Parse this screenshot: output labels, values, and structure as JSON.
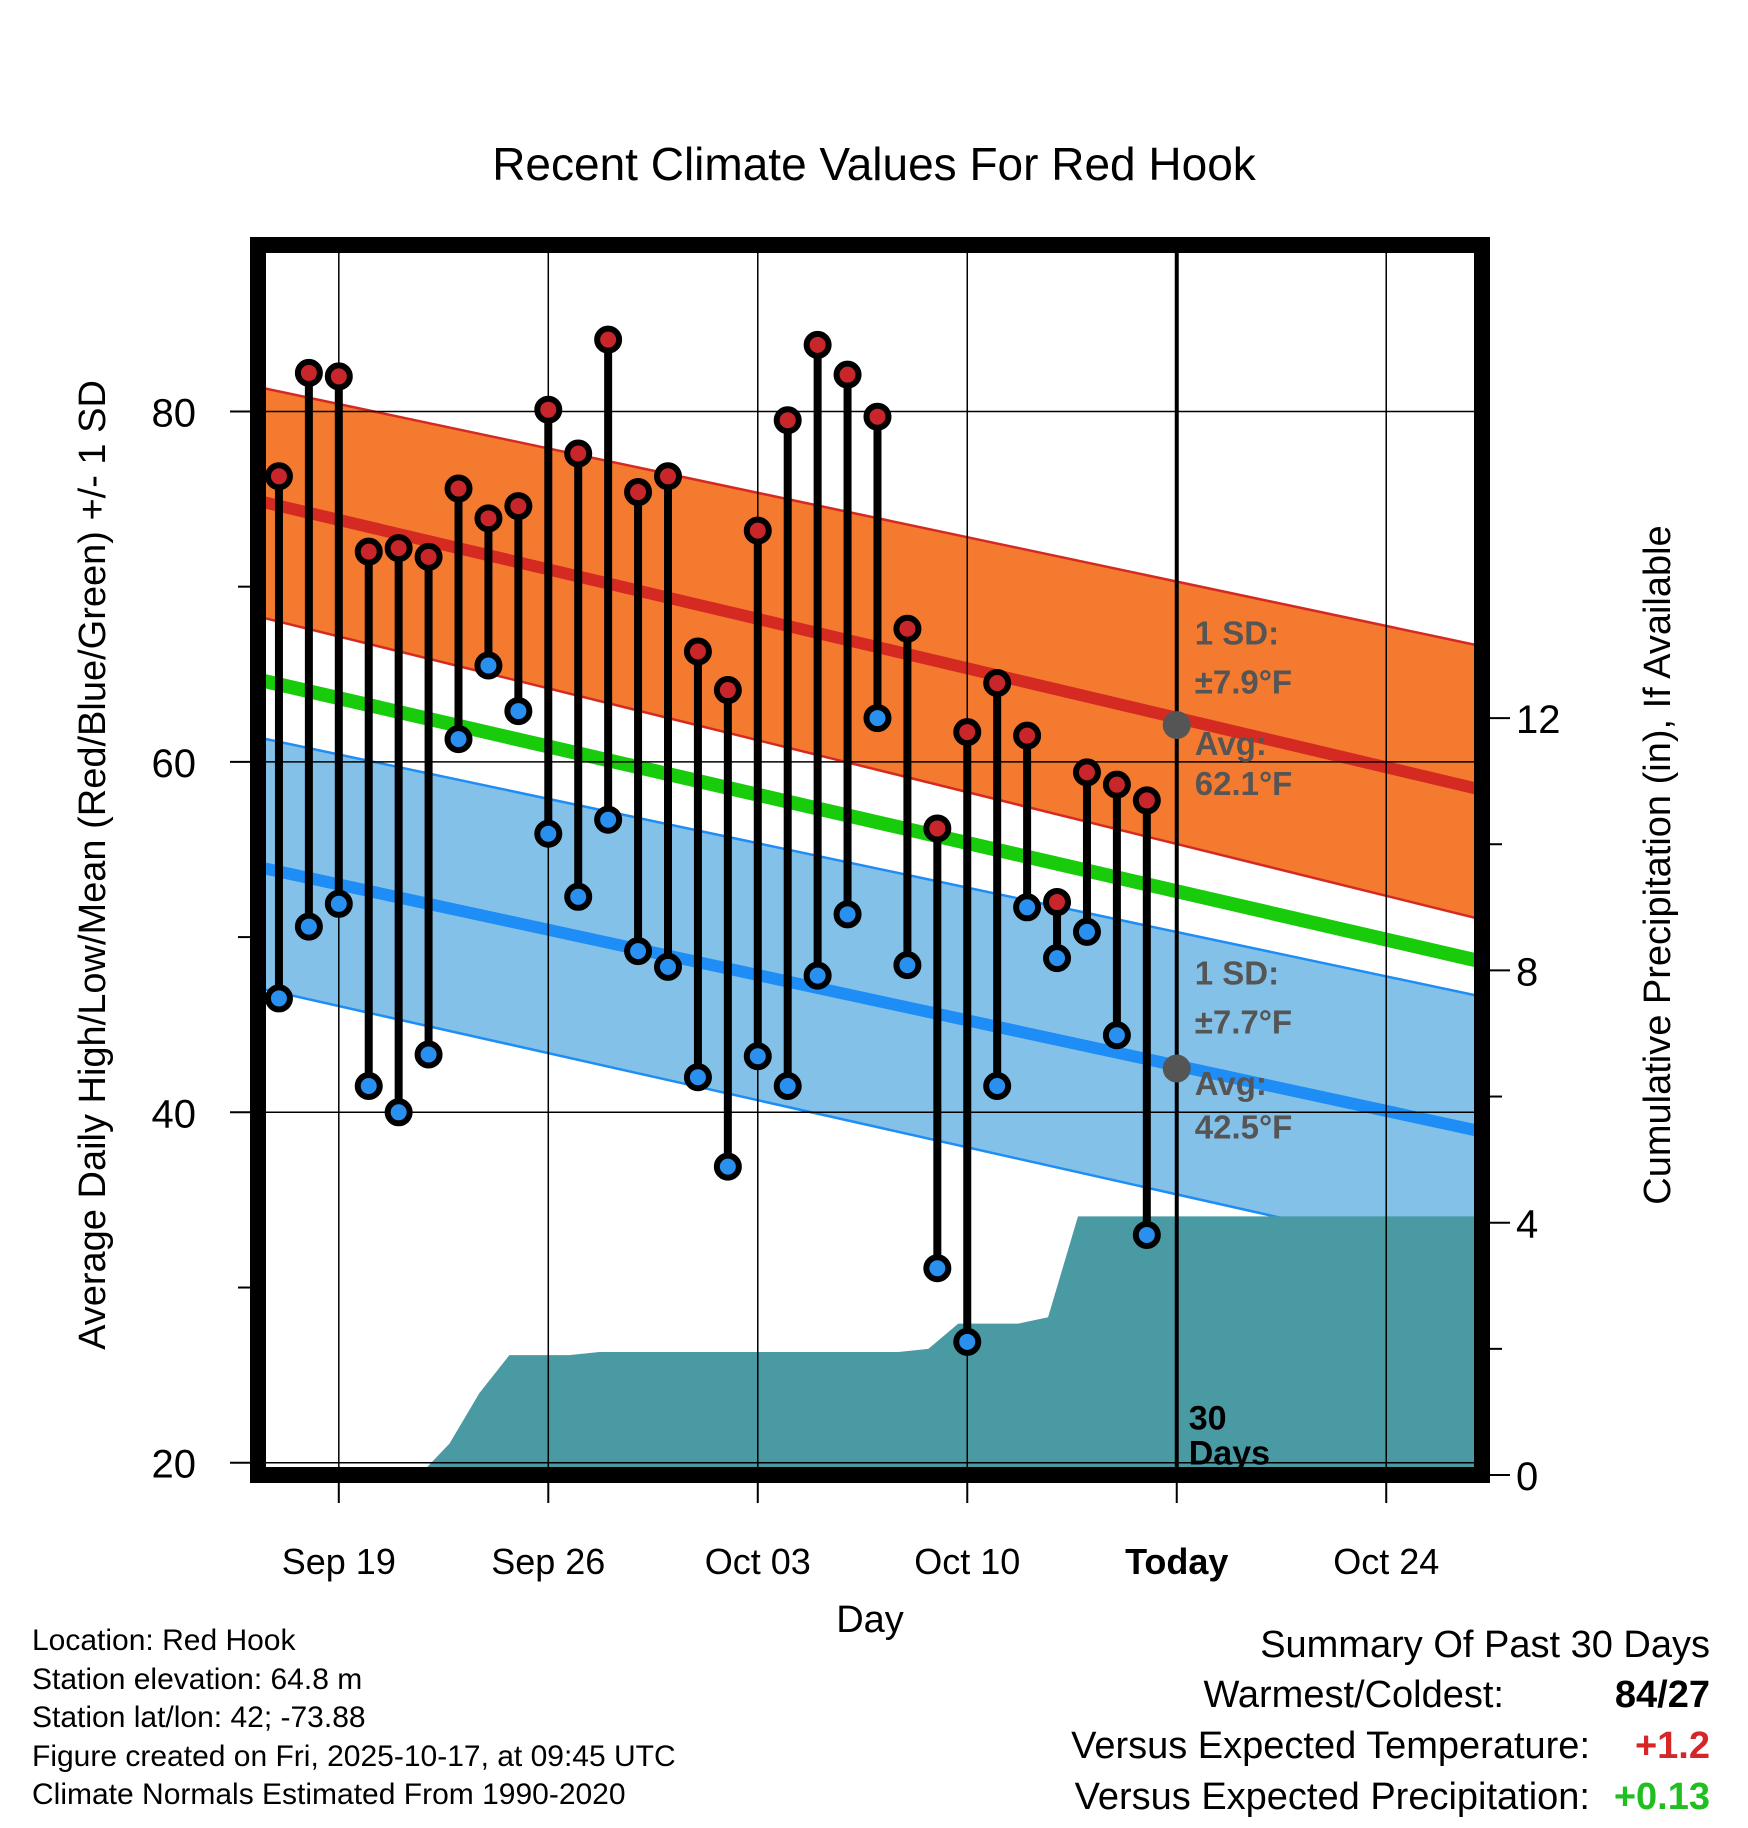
{
  "chart_data": {
    "type": "line",
    "title": "Recent Climate Values For Red Hook",
    "xlabel": "Day",
    "ylabel": "Average Daily High/Low/Mean (Red/Blue/Green) +/- 1 SD",
    "y2label": "Cumulative Precipitation (in), If Available",
    "ylim": [
      19.3,
      89.5
    ],
    "y2lim": [
      0,
      19.5
    ],
    "xlim": [
      -2.7,
      38.2
    ],
    "yticks": [
      "20",
      "40",
      "60",
      "80"
    ],
    "y2ticks": [
      "0",
      "4",
      "8",
      "12"
    ],
    "xticks": [
      {
        "day": 0,
        "label": "Sep 19"
      },
      {
        "day": 7,
        "label": "Sep 26"
      },
      {
        "day": 14,
        "label": "Oct 03"
      },
      {
        "day": 21,
        "label": "Oct 10"
      },
      {
        "day": 28,
        "label": "Today"
      },
      {
        "day": 35,
        "label": "Oct 24"
      }
    ],
    "grid": true,
    "today_day": 28,
    "today_label": "30 Days",
    "normals": {
      "high_mean": [
        74.9,
        58.4
      ],
      "high_upper": [
        81.4,
        66.6
      ],
      "high_lower": [
        68.3,
        51.0
      ],
      "low_mean": [
        54.0,
        38.9
      ],
      "low_upper": [
        61.4,
        46.6
      ],
      "low_lower": [
        47.1,
        31.4
      ],
      "mean": [
        64.7,
        48.6
      ]
    },
    "high_annotation": {
      "sd": "1 SD:",
      "sd_value": "±7.9°F",
      "avg": "Avg:",
      "avg_value": "62.1°F"
    },
    "low_annotation": {
      "sd": "1 SD:",
      "sd_value": "±7.7°F",
      "avg": "Avg:",
      "avg_value": "42.5°F"
    },
    "high_avg_today": 62.1,
    "low_avg_today": 42.5,
    "days": [
      -2,
      -1,
      0,
      1,
      2,
      3,
      4,
      5,
      6,
      7,
      8,
      9,
      10,
      11,
      12,
      13,
      14,
      15,
      16,
      17,
      18,
      19,
      20,
      21,
      22,
      23,
      24,
      25,
      26,
      27
    ],
    "highs": [
      76.3,
      82.2,
      82.0,
      72.0,
      72.2,
      71.7,
      75.6,
      73.9,
      74.6,
      80.1,
      77.6,
      84.1,
      75.4,
      76.3,
      66.3,
      64.1,
      73.2,
      79.5,
      83.8,
      82.1,
      79.7,
      67.6,
      56.2,
      61.7,
      64.5,
      61.5,
      52.0,
      59.4,
      58.7,
      57.8
    ],
    "lows": [
      46.5,
      50.6,
      51.9,
      41.5,
      40.0,
      43.3,
      61.3,
      65.5,
      62.9,
      55.9,
      52.3,
      56.7,
      49.2,
      48.3,
      42.0,
      36.9,
      43.2,
      41.5,
      47.8,
      51.3,
      62.5,
      48.4,
      31.1,
      26.9,
      41.5,
      51.7,
      48.8,
      50.3,
      44.4,
      33.0
    ],
    "precip": {
      "days": [
        -3.4,
        2.7,
        3.7,
        4.7,
        5.7,
        6.7,
        7.7,
        8.7,
        9.7,
        10.7,
        11.7,
        12.7,
        13.7,
        14.7,
        15.7,
        16.7,
        17.7,
        18.7,
        19.7,
        20.7,
        21.7,
        22.7,
        23.7,
        24.7,
        25.7,
        26.7,
        27.7,
        28.7,
        38.2
      ],
      "values": [
        0,
        0,
        0.5,
        1.3,
        1.9,
        1.9,
        1.9,
        1.95,
        1.95,
        1.95,
        1.95,
        1.95,
        1.95,
        1.95,
        1.95,
        1.95,
        1.95,
        1.95,
        2.0,
        2.4,
        2.4,
        2.4,
        2.5,
        4.1,
        4.1,
        4.1,
        4.1,
        4.1,
        4.1
      ]
    }
  },
  "info": {
    "location": "Location: Red Hook",
    "elevation": "Station elevation: 64.8 m",
    "latlon": "Station lat/lon: 42; -73.88",
    "created": "Figure created on Fri, 2025-10-17, at 09:45 UTC",
    "normals": "Climate Normals Estimated From 1990-2020"
  },
  "summary": {
    "title": "Summary Of Past 30 Days",
    "warmest_label": "Warmest/Coldest:",
    "warmest_value": "84/27",
    "temp_label": "Versus Expected Temperature:",
    "temp_value": "+1.2",
    "precip_label": "Versus Expected Precipitation:",
    "precip_value": "+0.13"
  },
  "colors": {
    "high_band": "#f47a30",
    "high_line": "#d42a22",
    "low_band": "#84c1e8",
    "low_line": "#1e8df5",
    "mean_line": "#18cc0c",
    "precip_fill": "#4a9aa4",
    "high_dot": "#c8262a",
    "low_dot": "#2a90f0",
    "annot": "#555555",
    "temp_value": "#d62728",
    "precip_value": "#1fbf1f"
  }
}
